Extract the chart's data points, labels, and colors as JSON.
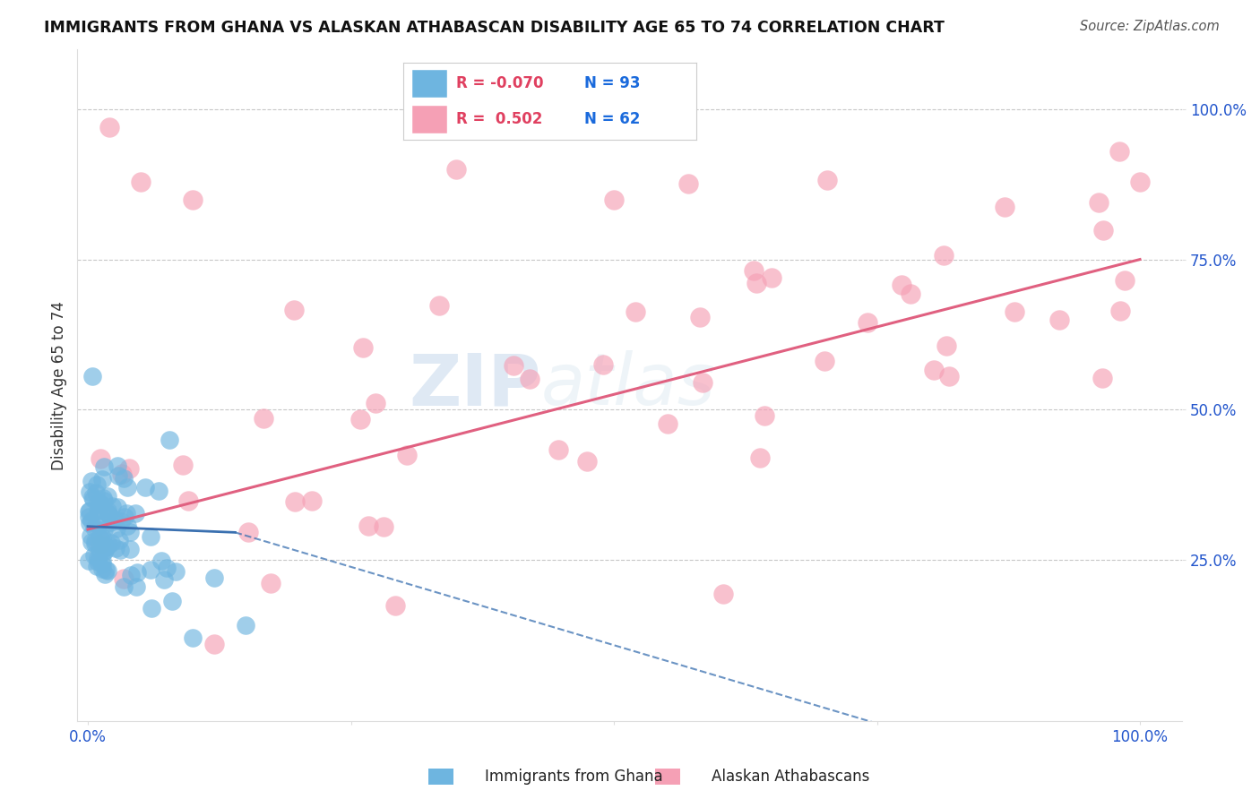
{
  "title": "IMMIGRANTS FROM GHANA VS ALASKAN ATHABASCAN DISABILITY AGE 65 TO 74 CORRELATION CHART",
  "source": "Source: ZipAtlas.com",
  "xlabel_blue": "Immigrants from Ghana",
  "xlabel_pink": "Alaskan Athabascans",
  "ylabel": "Disability Age 65 to 74",
  "r_blue": -0.07,
  "n_blue": 93,
  "r_pink": 0.502,
  "n_pink": 62,
  "color_blue": "#6eb5e0",
  "color_pink": "#f5a0b5",
  "color_blue_line": "#3a70b0",
  "color_pink_line": "#e06080",
  "watermark_zip": "ZIP",
  "watermark_atlas": "atlas",
  "background_color": "#ffffff",
  "grid_color": "#c8c8c8",
  "legend_r_color": "#e04060",
  "legend_n_color": "#1a6adc",
  "title_color": "#111111",
  "ylabel_color": "#333333",
  "tick_color": "#2255cc"
}
